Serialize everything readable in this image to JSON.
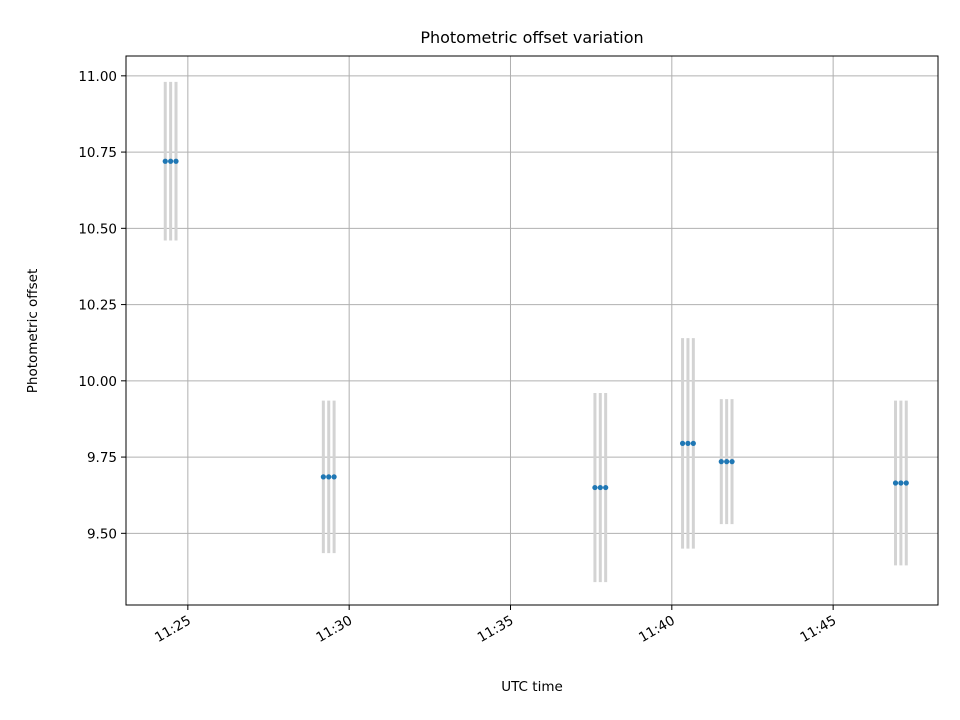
{
  "chart_data": {
    "type": "scatter",
    "title": "Photometric offset variation",
    "xlabel": "UTC time",
    "ylabel": "Photometric offset",
    "x_ticks": [
      "11:25",
      "11:30",
      "11:35",
      "11:40",
      "11:45"
    ],
    "y_ticks": [
      "9.50",
      "9.75",
      "10.00",
      "10.25",
      "10.50",
      "10.75",
      "11.00"
    ],
    "xlim": [
      "11:23:05",
      "11:48:15"
    ],
    "ylim": [
      9.265,
      11.065
    ],
    "grid": true,
    "colors": {
      "points": "#1f77b4",
      "errorbars": "#d3d3d3"
    },
    "points": [
      {
        "x": "11:24:18",
        "y": 10.72,
        "yerr": 0.26
      },
      {
        "x": "11:24:28",
        "y": 10.72,
        "yerr": 0.26
      },
      {
        "x": "11:24:38",
        "y": 10.72,
        "yerr": 0.26
      },
      {
        "x": "11:29:12",
        "y": 9.685,
        "yerr": 0.25
      },
      {
        "x": "11:29:22",
        "y": 9.685,
        "yerr": 0.25
      },
      {
        "x": "11:29:32",
        "y": 9.685,
        "yerr": 0.25
      },
      {
        "x": "11:37:37",
        "y": 9.65,
        "yerr": 0.31
      },
      {
        "x": "11:37:47",
        "y": 9.65,
        "yerr": 0.31
      },
      {
        "x": "11:37:57",
        "y": 9.65,
        "yerr": 0.31
      },
      {
        "x": "11:40:20",
        "y": 9.795,
        "yerr": 0.345
      },
      {
        "x": "11:40:30",
        "y": 9.795,
        "yerr": 0.345
      },
      {
        "x": "11:40:40",
        "y": 9.795,
        "yerr": 0.345
      },
      {
        "x": "11:41:32",
        "y": 9.735,
        "yerr": 0.205
      },
      {
        "x": "11:41:42",
        "y": 9.735,
        "yerr": 0.205
      },
      {
        "x": "11:41:52",
        "y": 9.735,
        "yerr": 0.205
      },
      {
        "x": "11:46:56",
        "y": 9.665,
        "yerr": 0.27
      },
      {
        "x": "11:47:06",
        "y": 9.665,
        "yerr": 0.27
      },
      {
        "x": "11:47:16",
        "y": 9.665,
        "yerr": 0.27
      }
    ]
  }
}
